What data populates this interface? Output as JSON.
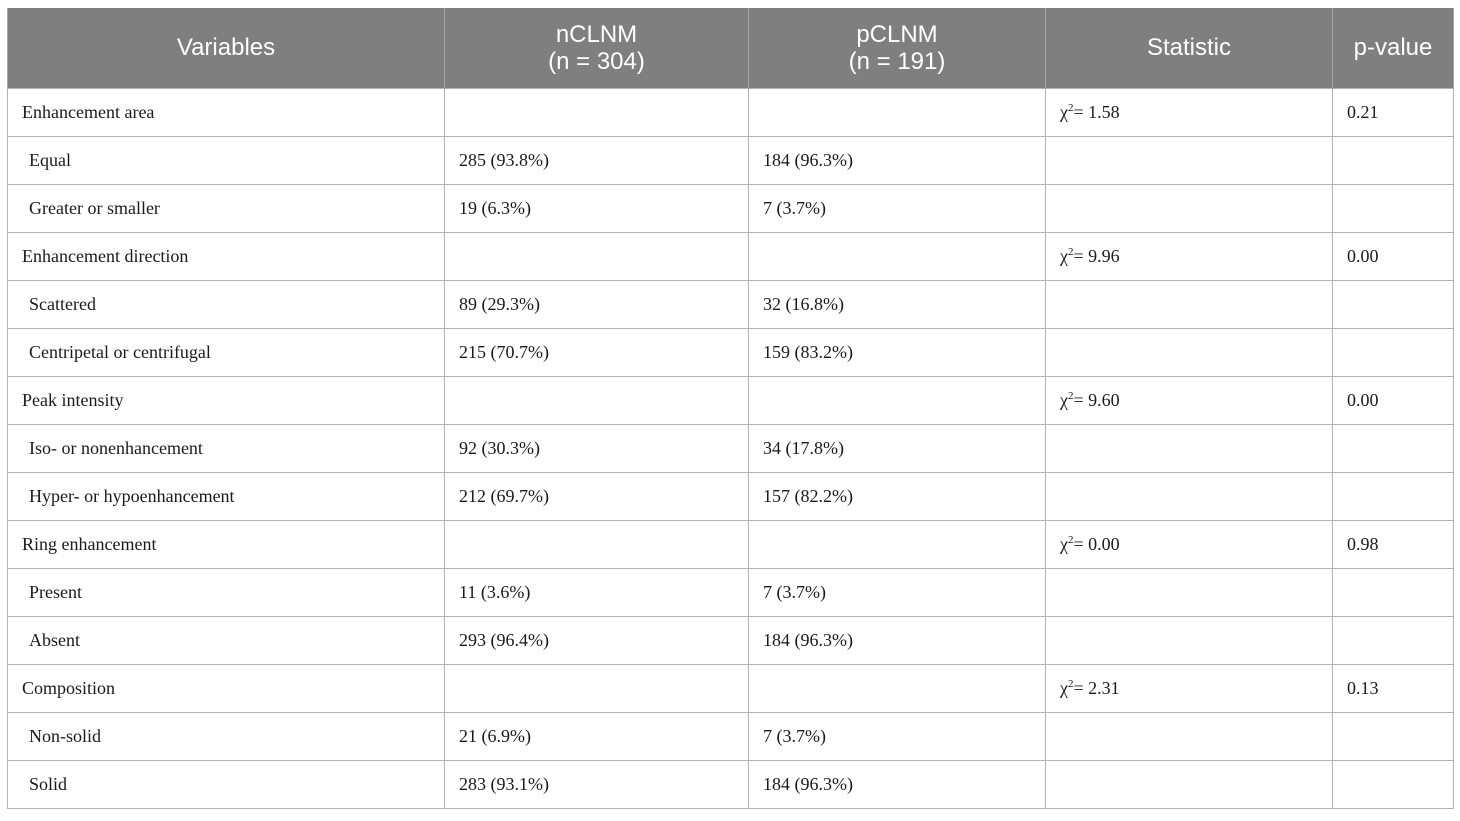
{
  "header": {
    "variables": "Variables",
    "ncl": {
      "name": "nCLNM",
      "n": "(n = 304)"
    },
    "pcl": {
      "name": "pCLNM",
      "n": "(n = 191)"
    },
    "statistic": "Statistic",
    "pvalue": "p-value"
  },
  "rows": [
    {
      "label": "Enhancement area",
      "ncl": "",
      "pcl": "",
      "stat_prefix": "χ",
      "stat_sup": "2",
      "stat_value": "= 1.58",
      "p": "0.21"
    },
    {
      "label": "Equal",
      "ncl": "285 (93.8%)",
      "pcl": "184 (96.3%)",
      "p": ""
    },
    {
      "label": "Greater or smaller",
      "ncl": "19 (6.3%)",
      "pcl": "7 (3.7%)",
      "p": ""
    },
    {
      "label": "Enhancement direction",
      "ncl": "",
      "pcl": "",
      "stat_prefix": "χ",
      "stat_sup": "2",
      "stat_value": "= 9.96",
      "p": "0.00"
    },
    {
      "label": "Scattered",
      "ncl": "89 (29.3%)",
      "pcl": "32 (16.8%)",
      "p": ""
    },
    {
      "label": "Centripetal or centrifugal",
      "ncl": "215 (70.7%)",
      "pcl": "159 (83.2%)",
      "p": ""
    },
    {
      "label": "Peak intensity",
      "ncl": "",
      "pcl": "",
      "stat_prefix": "χ",
      "stat_sup": "2",
      "stat_value": "= 9.60",
      "p": "0.00"
    },
    {
      "label": "Iso- or nonenhancement",
      "ncl": "92 (30.3%)",
      "pcl": "34 (17.8%)",
      "p": ""
    },
    {
      "label": "Hyper- or hypoenhancement",
      "ncl": "212 (69.7%)",
      "pcl": "157 (82.2%)",
      "p": ""
    },
    {
      "label": "Ring enhancement",
      "ncl": "",
      "pcl": "",
      "stat_prefix": "χ",
      "stat_sup": "2",
      "stat_value": "= 0.00",
      "p": "0.98"
    },
    {
      "label": "Present",
      "ncl": "11 (3.6%)",
      "pcl": "7 (3.7%)",
      "p": ""
    },
    {
      "label": "Absent",
      "ncl": "293 (96.4%)",
      "pcl": "184 (96.3%)",
      "p": ""
    },
    {
      "label": "Composition",
      "ncl": "",
      "pcl": "",
      "stat_prefix": "χ",
      "stat_sup": "2",
      "stat_value": "= 2.31",
      "p": "0.13"
    },
    {
      "label": "Non-solid",
      "ncl": "21 (6.9%)",
      "pcl": "7 (3.7%)",
      "p": ""
    },
    {
      "label": "Solid",
      "ncl": "283 (93.1%)",
      "pcl": "184 (96.3%)",
      "p": ""
    }
  ]
}
